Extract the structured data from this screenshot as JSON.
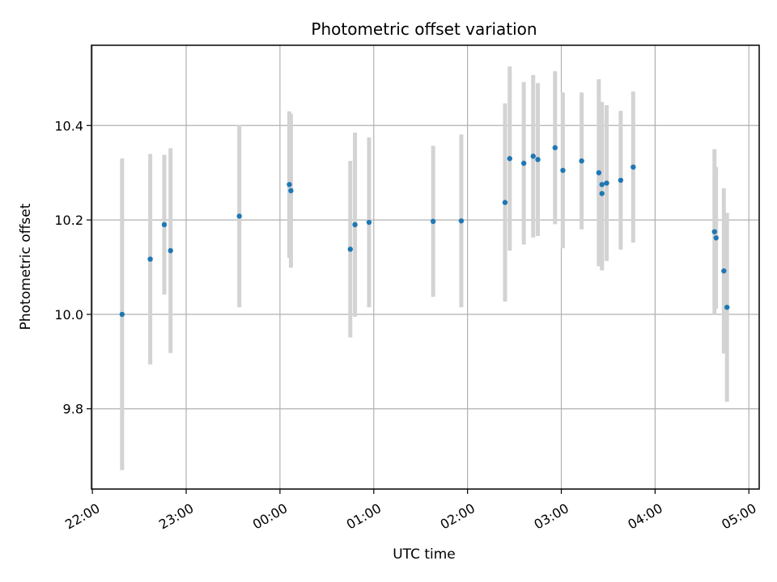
{
  "chart_data": {
    "type": "scatter",
    "title": "Photometric offset variation",
    "xlabel": "UTC time",
    "ylabel": "Photometric offset",
    "x_tick_labels": [
      "22:00",
      "23:00",
      "00:00",
      "01:00",
      "02:00",
      "03:00",
      "04:00",
      "05:00"
    ],
    "x_ticks_hours": [
      0,
      1,
      2,
      3,
      4,
      5,
      6,
      7
    ],
    "y_ticks": [
      9.8,
      10.0,
      10.2,
      10.4
    ],
    "xlim_hours": [
      -0.01,
      7.11
    ],
    "ylim": [
      9.63,
      10.57
    ],
    "grid": true,
    "colors": {
      "point": "#1f77b4",
      "errorbar": "#d3d3d3",
      "grid": "#b0b0b0",
      "axis": "#000000"
    },
    "points": [
      {
        "t": "22:19",
        "y": 10.0,
        "err": 0.33
      },
      {
        "t": "22:37",
        "y": 10.117,
        "err": 0.223
      },
      {
        "t": "22:46",
        "y": 10.19,
        "err": 0.148
      },
      {
        "t": "22:50",
        "y": 10.135,
        "err": 0.217
      },
      {
        "t": "23:34",
        "y": 10.208,
        "err": 0.193
      },
      {
        "t": "00:06",
        "y": 10.275,
        "err": 0.155
      },
      {
        "t": "00:07",
        "y": 10.262,
        "err": 0.163
      },
      {
        "t": "00:45",
        "y": 10.138,
        "err": 0.187
      },
      {
        "t": "00:48",
        "y": 10.19,
        "err": 0.195
      },
      {
        "t": "00:57",
        "y": 10.195,
        "err": 0.18
      },
      {
        "t": "01:38",
        "y": 10.197,
        "err": 0.16
      },
      {
        "t": "01:56",
        "y": 10.198,
        "err": 0.183
      },
      {
        "t": "02:24",
        "y": 10.237,
        "err": 0.21
      },
      {
        "t": "02:27",
        "y": 10.33,
        "err": 0.195
      },
      {
        "t": "02:36",
        "y": 10.32,
        "err": 0.172
      },
      {
        "t": "02:42",
        "y": 10.335,
        "err": 0.172
      },
      {
        "t": "02:45",
        "y": 10.328,
        "err": 0.162
      },
      {
        "t": "02:56",
        "y": 10.353,
        "err": 0.162
      },
      {
        "t": "03:01",
        "y": 10.305,
        "err": 0.165
      },
      {
        "t": "03:13",
        "y": 10.325,
        "err": 0.145
      },
      {
        "t": "03:24",
        "y": 10.3,
        "err": 0.198
      },
      {
        "t": "03:26",
        "y": 10.275,
        "err": 0.175
      },
      {
        "t": "03:26",
        "y": 10.256,
        "err": 0.163
      },
      {
        "t": "03:29",
        "y": 10.278,
        "err": 0.165
      },
      {
        "t": "03:38",
        "y": 10.284,
        "err": 0.147
      },
      {
        "t": "03:46",
        "y": 10.312,
        "err": 0.16
      },
      {
        "t": "04:38",
        "y": 10.175,
        "err": 0.175
      },
      {
        "t": "04:39",
        "y": 10.162,
        "err": 0.15
      },
      {
        "t": "04:44",
        "y": 10.092,
        "err": 0.175
      },
      {
        "t": "04:46",
        "y": 10.015,
        "err": 0.2
      }
    ]
  }
}
